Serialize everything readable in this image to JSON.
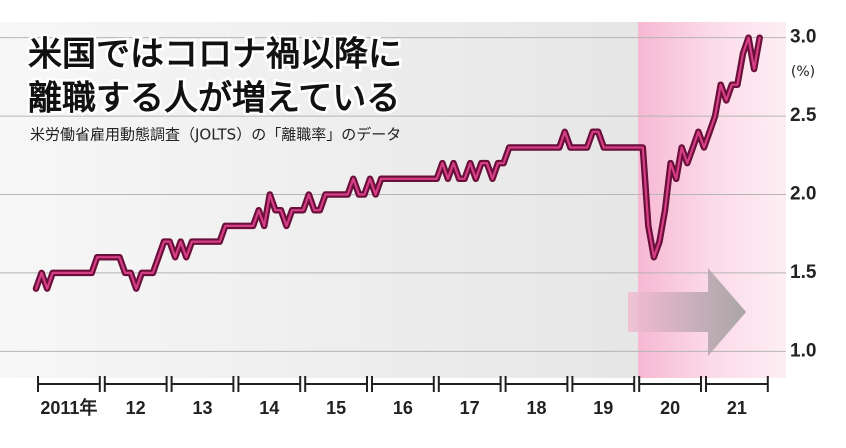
{
  "chart_data": {
    "type": "line",
    "title": [
      "米国ではコロナ禍以降に",
      "離職する人が増えている"
    ],
    "subtitle": "米労働省雇用動態調査（JOLTS）の「離職率」のデータ",
    "y_unit": "(%)",
    "ylim": [
      0.83,
      3.1
    ],
    "yticks": [
      {
        "value": 1,
        "label": "1.0"
      },
      1.5,
      {
        "value": 2,
        "label": "2.0"
      },
      2.5,
      {
        "value": 3,
        "label": "3.0"
      }
    ],
    "grid": true,
    "categories": [
      "2011年",
      null,
      null,
      null,
      null,
      null,
      null,
      null,
      null,
      null,
      null,
      null,
      "12",
      null,
      null,
      null,
      null,
      null,
      null,
      null,
      null,
      null,
      null,
      null,
      "13",
      null,
      null,
      null,
      null,
      null,
      null,
      null,
      null,
      null,
      null,
      null,
      "14",
      null,
      null,
      null,
      null,
      null,
      null,
      null,
      null,
      null,
      null,
      null,
      "15",
      null,
      null,
      null,
      null,
      null,
      null,
      null,
      null,
      null,
      null,
      null,
      "16",
      null,
      null,
      null,
      null,
      null,
      null,
      null,
      null,
      null,
      null,
      null,
      "17",
      null,
      null,
      null,
      null,
      null,
      null,
      null,
      null,
      null,
      null,
      null,
      "18",
      null,
      null,
      null,
      null,
      null,
      null,
      null,
      null,
      null,
      null,
      null,
      "19",
      null,
      null,
      null,
      null,
      null,
      null,
      null,
      null,
      null,
      null,
      null,
      "20",
      null,
      null,
      null,
      null,
      null,
      null,
      null,
      null,
      null,
      null,
      null,
      "21",
      null,
      null,
      null,
      null,
      null,
      null,
      null,
      null,
      null,
      null
    ],
    "series": [
      {
        "color": "#d63f86",
        "values": [
          1.4,
          1.5,
          1.4,
          1.5,
          1.5,
          1.5,
          1.5,
          1.5,
          1.5,
          1.5,
          1.5,
          1.6,
          1.6,
          1.6,
          1.6,
          1.6,
          1.5,
          1.5,
          1.4,
          1.5,
          1.5,
          1.5,
          1.6,
          1.7,
          1.7,
          1.6,
          1.7,
          1.6,
          1.7,
          1.7,
          1.7,
          1.7,
          1.7,
          1.7,
          1.8,
          1.8,
          1.8,
          1.8,
          1.8,
          1.8,
          1.9,
          1.8,
          2.0,
          1.9,
          1.9,
          1.8,
          1.9,
          1.9,
          1.9,
          2.0,
          1.9,
          1.9,
          2.0,
          2.0,
          2.0,
          2.0,
          2.0,
          2.1,
          2.0,
          2.0,
          2.1,
          2.0,
          2.1,
          2.1,
          2.1,
          2.1,
          2.1,
          2.1,
          2.1,
          2.1,
          2.1,
          2.1,
          2.1,
          2.2,
          2.1,
          2.2,
          2.1,
          2.1,
          2.2,
          2.1,
          2.2,
          2.2,
          2.1,
          2.2,
          2.2,
          2.3,
          2.3,
          2.3,
          2.3,
          2.3,
          2.3,
          2.3,
          2.3,
          2.3,
          2.3,
          2.4,
          2.3,
          2.3,
          2.3,
          2.3,
          2.4,
          2.4,
          2.3,
          2.3,
          2.3,
          2.3,
          2.3,
          2.3,
          2.3,
          2.3,
          1.8,
          1.6,
          1.7,
          1.9,
          2.2,
          2.1,
          2.3,
          2.2,
          2.3,
          2.4,
          2.3,
          2.4,
          2.5,
          2.7,
          2.6,
          2.7,
          2.7,
          2.9,
          3.0,
          2.8,
          3.0
        ]
      }
    ]
  }
}
